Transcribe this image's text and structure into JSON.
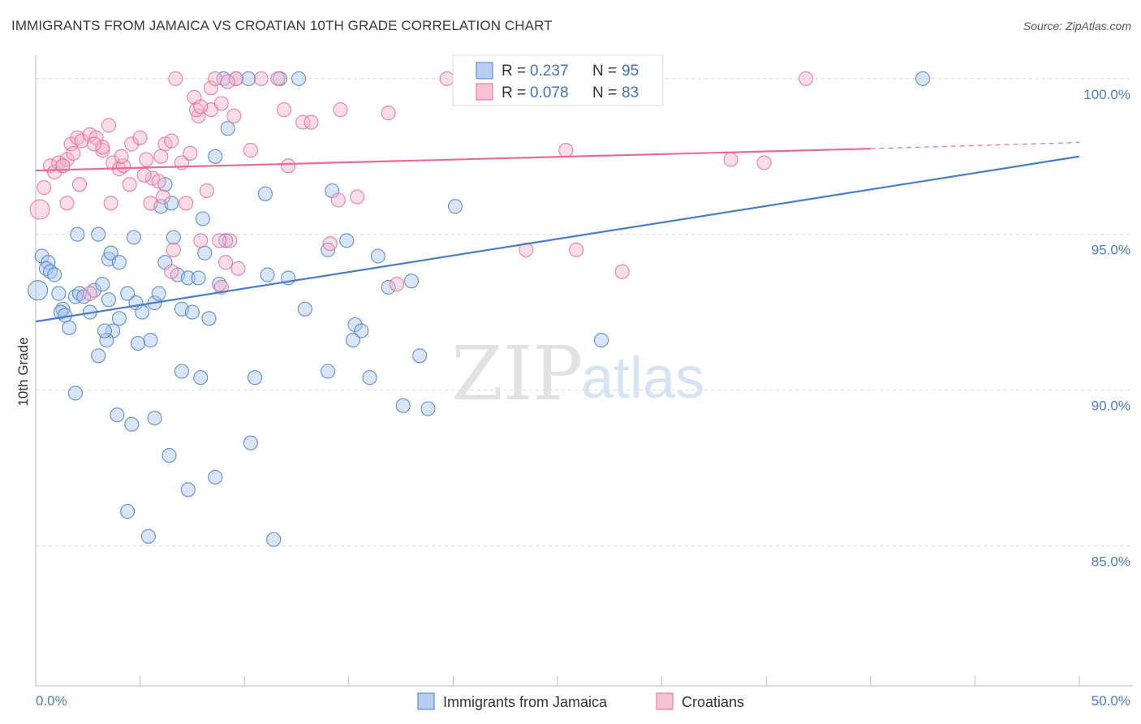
{
  "header": {
    "title": "IMMIGRANTS FROM JAMAICA VS CROATIAN 10TH GRADE CORRELATION CHART",
    "source": "Source: ZipAtlas.com"
  },
  "watermark": {
    "zip": "ZIP",
    "atlas": "atlas"
  },
  "colors": {
    "blue": "#4a7cc9",
    "blue_fill": "#a9c6ee",
    "pink": "#e86b95",
    "pink_fill": "#f5b3c8",
    "grid": "#dcdcdc",
    "axis_text": "#4a7cc9"
  },
  "legend": {
    "rows": [
      {
        "r_label": "R = ",
        "r_value": "0.237",
        "n_label": "N = ",
        "n_value": "95"
      },
      {
        "r_label": "R = ",
        "r_value": "0.078",
        "n_label": "N = ",
        "n_value": "83"
      }
    ]
  },
  "bottom_legend": {
    "series_a": "Immigrants from Jamaica",
    "series_b": "Croatians"
  },
  "chart_data": {
    "type": "scatter",
    "title": "IMMIGRANTS FROM JAMAICA VS CROATIAN 10TH GRADE CORRELATION CHART",
    "xlabel": "",
    "ylabel": "10th Grade",
    "xlim": [
      0,
      50
    ],
    "ylim": [
      80.5,
      100.7
    ],
    "x_tick_labels": [
      "0.0%",
      "50.0%"
    ],
    "y_tick_labels": [
      "100.0%",
      "95.0%",
      "90.0%",
      "85.0%"
    ],
    "y_tick_values": [
      100,
      95,
      90,
      85
    ],
    "grid": true,
    "legend_placement": "top-center",
    "series": [
      {
        "name": "Immigrants from Jamaica",
        "color": "#4a7cc9",
        "trend": {
          "x": [
            0,
            50
          ],
          "y": [
            92.2,
            97.5
          ]
        },
        "points": [
          [
            0.1,
            93.2
          ],
          [
            0.3,
            94.3
          ],
          [
            0.6,
            94.1
          ],
          [
            0.5,
            93.9
          ],
          [
            0.7,
            93.8
          ],
          [
            0.9,
            93.7
          ],
          [
            1.1,
            93.1
          ],
          [
            1.3,
            92.6
          ],
          [
            1.2,
            92.5
          ],
          [
            1.6,
            92.0
          ],
          [
            1.4,
            92.4
          ],
          [
            1.9,
            93.0
          ],
          [
            2.1,
            93.1
          ],
          [
            2.3,
            93.0
          ],
          [
            2.6,
            92.5
          ],
          [
            2.8,
            93.2
          ],
          [
            3.2,
            93.4
          ],
          [
            3.5,
            92.9
          ],
          [
            3.7,
            91.9
          ],
          [
            3.4,
            91.6
          ],
          [
            3.0,
            91.1
          ],
          [
            3.3,
            91.9
          ],
          [
            4.0,
            92.3
          ],
          [
            4.4,
            93.1
          ],
          [
            4.8,
            92.8
          ],
          [
            5.1,
            92.5
          ],
          [
            5.7,
            92.8
          ],
          [
            5.9,
            93.1
          ],
          [
            5.5,
            91.6
          ],
          [
            4.9,
            91.5
          ],
          [
            2.0,
            95.0
          ],
          [
            3.0,
            95.0
          ],
          [
            3.5,
            94.2
          ],
          [
            3.6,
            94.4
          ],
          [
            4.0,
            94.1
          ],
          [
            4.7,
            94.9
          ],
          [
            6.2,
            94.1
          ],
          [
            6.6,
            94.9
          ],
          [
            6.8,
            93.7
          ],
          [
            7.0,
            92.6
          ],
          [
            7.5,
            92.5
          ],
          [
            7.3,
            93.6
          ],
          [
            7.8,
            93.6
          ],
          [
            8.1,
            94.4
          ],
          [
            8.3,
            92.3
          ],
          [
            8.8,
            93.4
          ],
          [
            9.1,
            94.8
          ],
          [
            6.0,
            95.9
          ],
          [
            6.5,
            96.0
          ],
          [
            8.0,
            95.5
          ],
          [
            8.6,
            97.5
          ],
          [
            9.2,
            98.4
          ],
          [
            11.0,
            96.3
          ],
          [
            11.1,
            93.7
          ],
          [
            12.1,
            93.6
          ],
          [
            12.9,
            92.6
          ],
          [
            14.0,
            94.5
          ],
          [
            14.2,
            96.4
          ],
          [
            14.9,
            94.8
          ],
          [
            15.3,
            92.1
          ],
          [
            15.6,
            91.9
          ],
          [
            15.2,
            91.6
          ],
          [
            16.4,
            94.3
          ],
          [
            16.9,
            93.3
          ],
          [
            18.0,
            93.5
          ],
          [
            18.4,
            91.1
          ],
          [
            20.1,
            95.9
          ],
          [
            7.0,
            90.6
          ],
          [
            7.9,
            90.4
          ],
          [
            10.5,
            90.4
          ],
          [
            14.0,
            90.6
          ],
          [
            16.0,
            90.4
          ],
          [
            1.9,
            89.9
          ],
          [
            3.9,
            89.2
          ],
          [
            4.6,
            88.9
          ],
          [
            5.7,
            89.1
          ],
          [
            10.3,
            88.3
          ],
          [
            6.4,
            87.9
          ],
          [
            17.6,
            89.5
          ],
          [
            18.8,
            89.4
          ],
          [
            27.1,
            91.6
          ],
          [
            8.6,
            87.2
          ],
          [
            7.3,
            86.8
          ],
          [
            4.4,
            86.1
          ],
          [
            5.4,
            85.3
          ],
          [
            11.4,
            85.2
          ],
          [
            9.0,
            100.0
          ],
          [
            10.2,
            100.0
          ],
          [
            11.7,
            100.0
          ],
          [
            12.6,
            100.0
          ],
          [
            20.7,
            100.0
          ],
          [
            25.9,
            100.0
          ],
          [
            42.5,
            100.0
          ],
          [
            9.6,
            100.0
          ],
          [
            6.2,
            96.6
          ]
        ]
      },
      {
        "name": "Croatians",
        "color": "#e86b95",
        "trend": {
          "x": [
            0,
            40
          ],
          "y": [
            97.05,
            97.75
          ],
          "dashed_to": [
            50,
            97.95
          ]
        },
        "points": [
          [
            0.2,
            95.8
          ],
          [
            0.4,
            96.5
          ],
          [
            0.7,
            97.2
          ],
          [
            0.9,
            97.0
          ],
          [
            1.1,
            97.3
          ],
          [
            1.3,
            97.2
          ],
          [
            1.5,
            97.4
          ],
          [
            1.7,
            97.9
          ],
          [
            2.0,
            98.1
          ],
          [
            2.2,
            98.0
          ],
          [
            2.6,
            98.2
          ],
          [
            2.9,
            98.1
          ],
          [
            3.2,
            97.7
          ],
          [
            3.5,
            98.5
          ],
          [
            3.7,
            97.3
          ],
          [
            4.0,
            97.1
          ],
          [
            4.2,
            97.2
          ],
          [
            4.6,
            97.9
          ],
          [
            5.0,
            98.1
          ],
          [
            5.3,
            97.4
          ],
          [
            5.6,
            96.8
          ],
          [
            5.9,
            96.7
          ],
          [
            6.2,
            97.9
          ],
          [
            6.5,
            98.0
          ],
          [
            7.0,
            97.3
          ],
          [
            7.4,
            97.6
          ],
          [
            2.1,
            96.6
          ],
          [
            3.6,
            96.0
          ],
          [
            1.5,
            96.0
          ],
          [
            4.5,
            96.6
          ],
          [
            5.5,
            96.0
          ],
          [
            6.1,
            96.2
          ],
          [
            7.2,
            96.0
          ],
          [
            8.2,
            96.4
          ],
          [
            9.3,
            94.8
          ],
          [
            7.9,
            94.8
          ],
          [
            6.6,
            94.5
          ],
          [
            8.8,
            94.8
          ],
          [
            9.1,
            94.1
          ],
          [
            9.7,
            93.9
          ],
          [
            10.3,
            97.7
          ],
          [
            12.1,
            97.2
          ],
          [
            12.8,
            98.6
          ],
          [
            13.2,
            98.6
          ],
          [
            14.5,
            96.1
          ],
          [
            15.4,
            96.2
          ],
          [
            14.1,
            94.7
          ],
          [
            17.3,
            93.4
          ],
          [
            2.6,
            93.1
          ],
          [
            6.5,
            93.8
          ],
          [
            8.9,
            93.3
          ],
          [
            7.8,
            98.8
          ],
          [
            8.4,
            99.0
          ],
          [
            7.6,
            99.4
          ],
          [
            9.5,
            98.8
          ],
          [
            11.9,
            99.0
          ],
          [
            14.6,
            99.0
          ],
          [
            16.9,
            98.9
          ],
          [
            25.4,
            97.7
          ],
          [
            33.3,
            97.4
          ],
          [
            34.9,
            97.3
          ],
          [
            23.5,
            94.5
          ],
          [
            25.9,
            94.5
          ],
          [
            28.1,
            93.8
          ],
          [
            7.7,
            99.0
          ],
          [
            8.4,
            99.7
          ],
          [
            8.9,
            99.2
          ],
          [
            9.6,
            100.0
          ],
          [
            6.7,
            100.0
          ],
          [
            8.6,
            100.0
          ],
          [
            10.8,
            100.0
          ],
          [
            11.6,
            100.0
          ],
          [
            19.7,
            100.0
          ],
          [
            36.9,
            100.0
          ],
          [
            9.2,
            99.9
          ],
          [
            1.3,
            97.2
          ],
          [
            3.2,
            97.8
          ],
          [
            4.1,
            97.5
          ],
          [
            5.2,
            96.9
          ],
          [
            7.9,
            99.1
          ],
          [
            6.0,
            97.5
          ],
          [
            2.8,
            97.9
          ],
          [
            1.8,
            97.6
          ]
        ]
      }
    ]
  }
}
